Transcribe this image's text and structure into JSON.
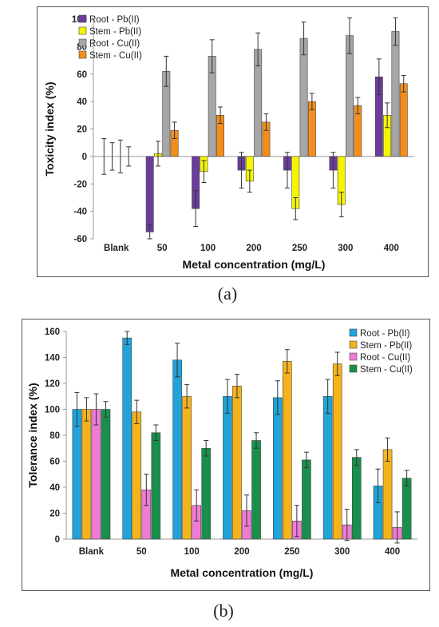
{
  "charts": [
    {
      "id": "a",
      "caption": "(a)",
      "chart_data": {
        "type": "bar",
        "categories": [
          "Blank",
          "50",
          "100",
          "200",
          "250",
          "300",
          "400"
        ],
        "xlabel": "Metal concentration (mg/L)",
        "ylabel": "Toxicity index (%)",
        "ylim": [
          -60,
          100
        ],
        "yticks": [
          -60,
          -40,
          -20,
          0,
          20,
          40,
          60,
          80,
          100
        ],
        "legend_position": "top-left",
        "grid": false,
        "series": [
          {
            "name": "Root - Pb(II)",
            "color": "#6a3d9a",
            "values": [
              0,
              -55,
              -38,
              -10,
              -10,
              -10,
              58
            ],
            "errors": [
              13,
              5,
              13,
              13,
              13,
              13,
              13
            ]
          },
          {
            "name": "Stem - Pb(II)",
            "color": "#f5f500",
            "values": [
              0,
              2,
              -11,
              -18,
              -38,
              -35,
              30
            ],
            "errors": [
              10,
              9,
              8,
              8,
              8,
              9,
              9
            ]
          },
          {
            "name": "Root - Cu(II)",
            "color": "#a6a6a6",
            "values": [
              0,
              62,
              73,
              78,
              86,
              88,
              91
            ],
            "errors": [
              12,
              11,
              12,
              12,
              12,
              13,
              10
            ]
          },
          {
            "name": "Stem - Cu(II)",
            "color": "#f28e1c",
            "values": [
              0,
              19,
              30,
              25,
              40,
              37,
              53
            ],
            "errors": [
              7,
              6,
              6,
              6,
              6,
              6,
              6
            ]
          }
        ]
      }
    },
    {
      "id": "b",
      "caption": "(b)",
      "chart_data": {
        "type": "bar",
        "categories": [
          "Blank",
          "50",
          "100",
          "200",
          "250",
          "300",
          "400"
        ],
        "xlabel": "Metal concentration (mg/L)",
        "ylabel": "Tolerance index (%)",
        "ylim": [
          0,
          160
        ],
        "yticks": [
          0,
          20,
          40,
          60,
          80,
          100,
          120,
          140,
          160
        ],
        "legend_position": "top-right",
        "grid": false,
        "series": [
          {
            "name": "Root - Pb(II)",
            "color": "#1fa3d9",
            "values": [
              100,
              155,
              138,
              110,
              109,
              110,
              41
            ],
            "errors": [
              13,
              5,
              13,
              13,
              13,
              13,
              13
            ]
          },
          {
            "name": "Stem - Pb(II)",
            "color": "#f5b21a",
            "values": [
              100,
              98,
              110,
              118,
              137,
              135,
              69
            ],
            "errors": [
              9,
              9,
              9,
              9,
              9,
              9,
              9
            ]
          },
          {
            "name": "Root - Cu(II)",
            "color": "#f07bd6",
            "values": [
              100,
              38,
              26,
              22,
              14,
              11,
              9
            ],
            "errors": [
              12,
              12,
              12,
              12,
              12,
              12,
              12
            ]
          },
          {
            "name": "Stem - Cu(II)",
            "color": "#1a8f4c",
            "values": [
              100,
              82,
              70,
              76,
              61,
              63,
              47
            ],
            "errors": [
              6,
              6,
              6,
              6,
              6,
              6,
              6
            ]
          }
        ]
      }
    }
  ]
}
